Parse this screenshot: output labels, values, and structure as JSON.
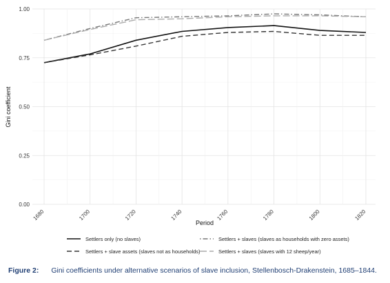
{
  "chart_data": {
    "type": "line",
    "xlabel": "Period",
    "ylabel": "Gini coefficient",
    "x": [
      1680,
      1700,
      1720,
      1740,
      1760,
      1780,
      1800,
      1820
    ],
    "xlim": [
      1680,
      1820
    ],
    "ylim": [
      0,
      1
    ],
    "yticks": [
      "0.00",
      "0.25",
      "0.50",
      "0.75",
      "1.00"
    ],
    "grid": true,
    "legend_position": "bottom",
    "series": [
      {
        "name": "Settlers only (no slaves)",
        "style": "solid",
        "color": "#111111",
        "values": [
          0.725,
          0.77,
          0.84,
          0.885,
          0.905,
          0.915,
          0.89,
          0.88
        ]
      },
      {
        "name": "Settlers + slave assets (slaves not as households)",
        "style": "dashed",
        "color": "#333333",
        "values": [
          0.725,
          0.765,
          0.81,
          0.86,
          0.88,
          0.885,
          0.865,
          0.865
        ]
      },
      {
        "name": "Settlers + slaves (slaves as households with zero assets)",
        "style": "dotdash",
        "color": "#777777",
        "values": [
          0.84,
          0.9,
          0.955,
          0.96,
          0.965,
          0.975,
          0.97,
          0.96
        ]
      },
      {
        "name": "Settlers + slaves (slaves with 12 sheep/year)",
        "style": "longdash",
        "color": "#aaaaaa",
        "values": [
          0.84,
          0.895,
          0.945,
          0.95,
          0.96,
          0.965,
          0.965,
          0.96
        ]
      }
    ]
  },
  "caption": {
    "label": "Figure 2:",
    "text": "Gini coefficients under alternative scenarios of slave inclusion, Stellenbosch-Drakenstein, 1685–1844."
  }
}
